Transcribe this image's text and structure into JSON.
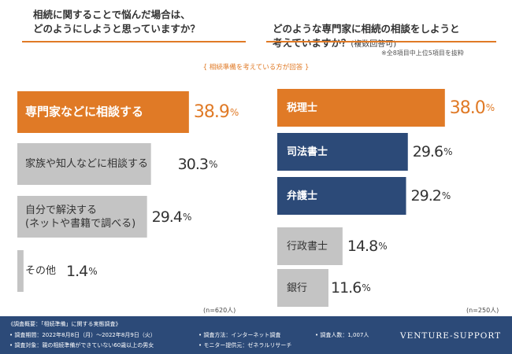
{
  "left": {
    "question": "相続に関することで悩んだ場合は、\nどのようにしようと思っていますか？",
    "n_label": "(n=620人)"
  },
  "right": {
    "question": "どのような専門家に相続の相談をしようと\n考えていますか？",
    "question_suffix": "(複数回答可)",
    "note": "※全8項目中上位5項目を抜粋",
    "n_label": "(n=250人)"
  },
  "subtitle": "{ 相続準備を考えている方が回答 }",
  "footer": {
    "overview": "《調査概要：「相続準備」に関する実態調査》",
    "period": "• 調査期間：2022年8月8日（月）～2022年8月9日（火）",
    "method": "• 調査方法：インターネット調査",
    "count": "• 調査人数：1,007人",
    "target": "• 調査対象：親の相続準備ができていない60歳以上の男女",
    "provider": "• モニター提供元：ゼネラルリサーチ",
    "brand": "VENTURE-SUPPORT"
  },
  "colors": {
    "orange": "#e07a26",
    "navy": "#2c4a78",
    "gray": "#c4c4c4",
    "white_text": "#ffffff",
    "dark_text": "#333333"
  },
  "chart_data": [
    {
      "type": "bar",
      "orientation": "horizontal",
      "title": "相続に関することで悩んだ場合は、どのようにしようと思っていますか？",
      "categories": [
        "専門家などに相談する",
        "家族や知人などに相談する",
        "自分で解決する\n(ネットや書籍で調べる)",
        "その他"
      ],
      "values": [
        38.9,
        30.3,
        29.4,
        1.4
      ],
      "value_labels": [
        "38.9",
        "30.3",
        "29.4",
        "1.4"
      ],
      "unit": "%",
      "colors": [
        "#e07a26",
        "#c4c4c4",
        "#c4c4c4",
        "#c4c4c4"
      ],
      "label_colors": [
        "#ffffff",
        "#333333",
        "#333333",
        "#333333"
      ],
      "value_colors": [
        "#e07a26",
        "#333333",
        "#333333",
        "#333333"
      ],
      "xlim": [
        0,
        100
      ]
    },
    {
      "type": "bar",
      "orientation": "horizontal",
      "title": "どのような専門家に相続の相談をしようと考えていますか？(複数回答可)",
      "categories": [
        "税理士",
        "司法書士",
        "弁護士",
        "行政書士",
        "銀行"
      ],
      "values": [
        38.0,
        29.6,
        29.2,
        14.8,
        11.6
      ],
      "value_labels": [
        "38.0",
        "29.6",
        "29.2",
        "14.8",
        "11.6"
      ],
      "unit": "%",
      "colors": [
        "#e07a26",
        "#2c4a78",
        "#2c4a78",
        "#c4c4c4",
        "#c4c4c4"
      ],
      "label_colors": [
        "#ffffff",
        "#ffffff",
        "#ffffff",
        "#333333",
        "#333333"
      ],
      "value_colors": [
        "#e07a26",
        "#333333",
        "#333333",
        "#333333",
        "#333333"
      ],
      "xlim": [
        0,
        100
      ]
    }
  ]
}
